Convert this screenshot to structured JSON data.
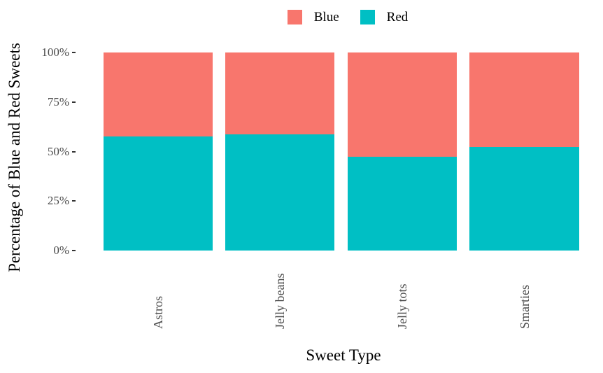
{
  "chart_data": {
    "type": "bar",
    "stacked": true,
    "orientation": "vertical",
    "categories": [
      "Astros",
      "Jelly beans",
      "Jelly tots",
      "Smarties"
    ],
    "series": [
      {
        "name": "Blue",
        "color": "#F8766D",
        "values": [
          42.5,
          41.5,
          52.8,
          47.8
        ]
      },
      {
        "name": "Red",
        "color": "#00BFC4",
        "values": [
          57.5,
          58.5,
          47.2,
          52.2
        ]
      }
    ],
    "value_unit": "percent of sweets",
    "xlabel": "Sweet Type",
    "ylabel": "Percentage of Blue and Red Sweets",
    "ylim": [
      0,
      100
    ],
    "y_ticks": [
      {
        "label": "100%",
        "value": 100
      },
      {
        "label": "75%",
        "value": 75
      },
      {
        "label": "50%",
        "value": 50
      },
      {
        "label": "25%",
        "value": 25
      },
      {
        "label": "0%",
        "value": 0
      }
    ],
    "grid": false,
    "legend_position": "top-center",
    "axis_text_color": "#4D4D4D",
    "title_text_color": "#000000"
  }
}
